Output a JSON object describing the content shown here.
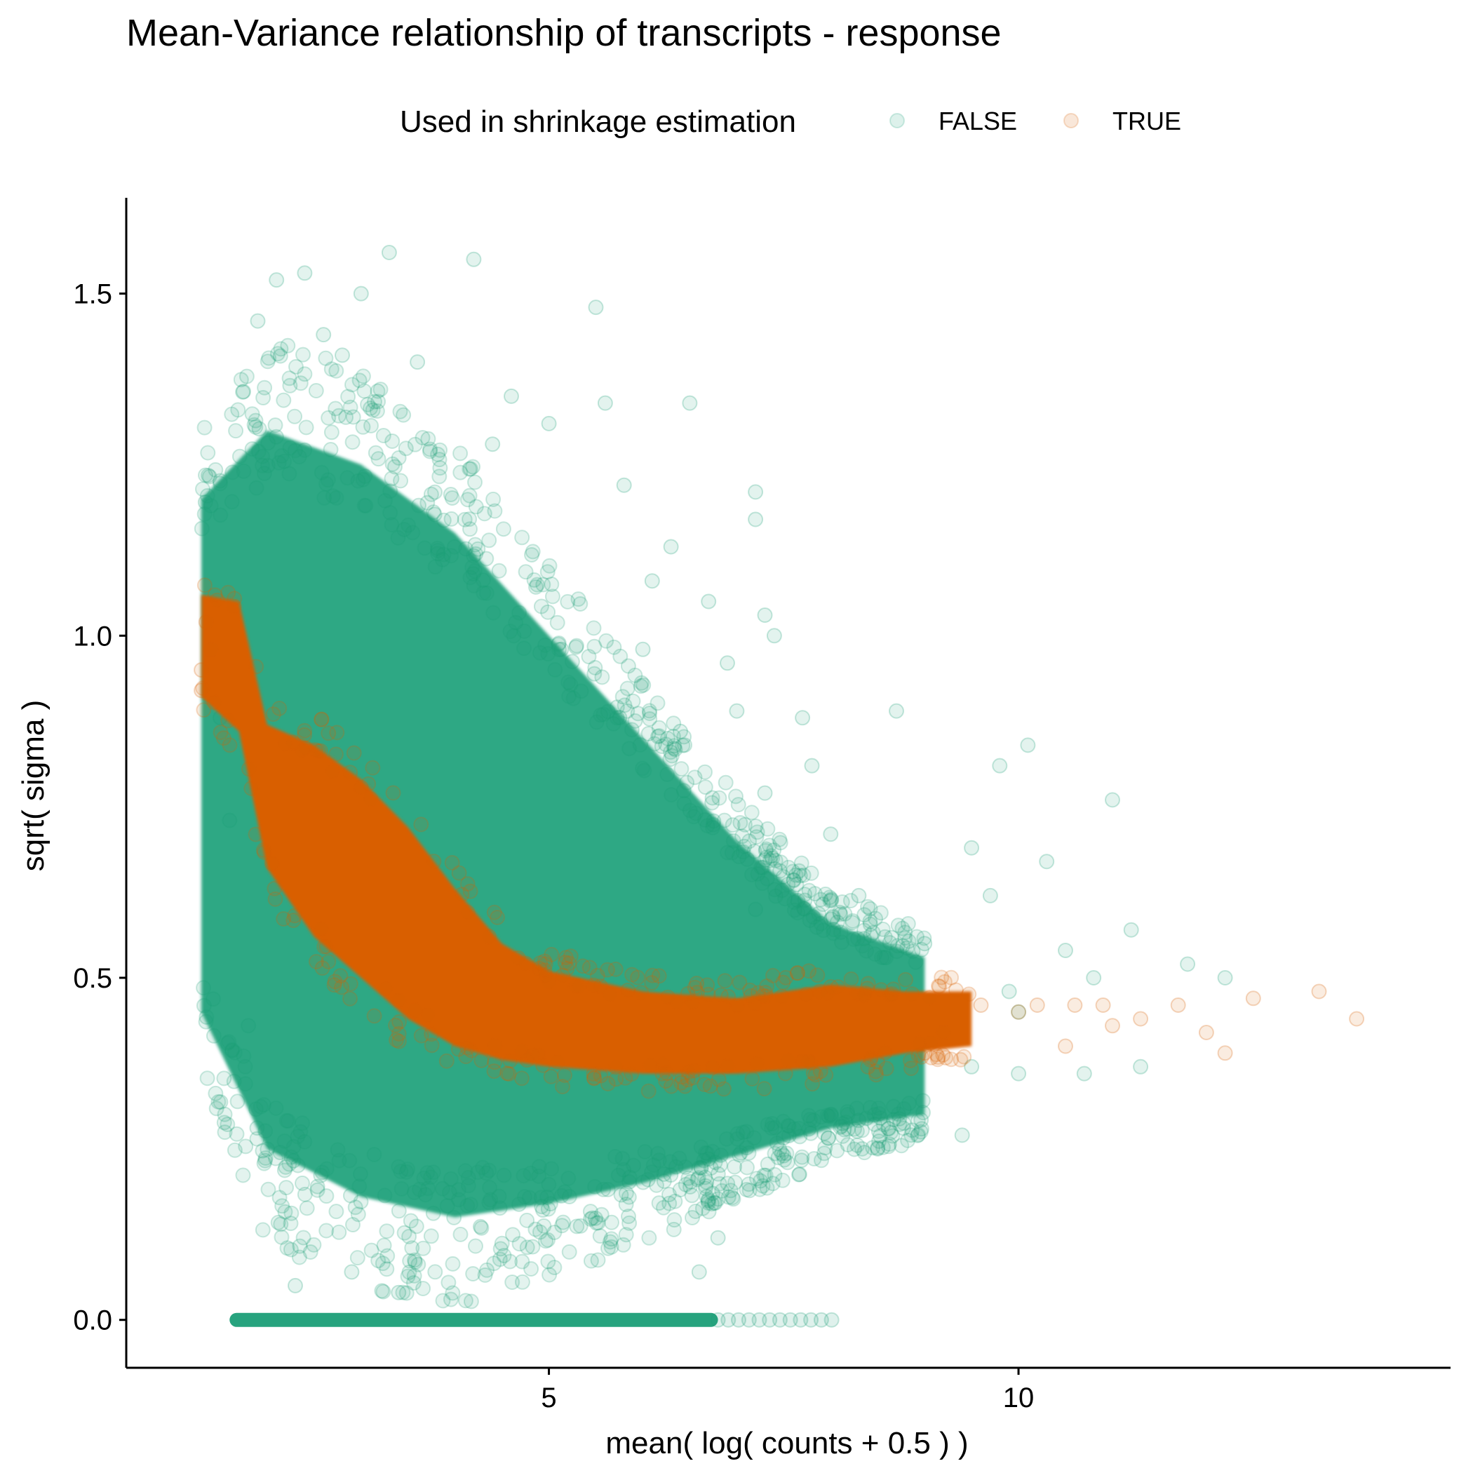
{
  "chart_data": {
    "type": "scatter",
    "title": "Mean-Variance relationship of transcripts - response",
    "xlabel": "mean( log( counts + 0.5 ) )",
    "ylabel": "sqrt( sigma )",
    "xlim": [
      0.5,
      14.6
    ],
    "ylim": [
      -0.07,
      1.64
    ],
    "x_ticks": [
      5,
      10
    ],
    "x_tick_labels": [
      "5",
      "10"
    ],
    "y_ticks": [
      0.0,
      0.5,
      1.0,
      1.5
    ],
    "y_tick_labels": [
      "0.0",
      "0.5",
      "1.0",
      "1.5"
    ],
    "grid": false,
    "legend": {
      "title": "Used in shrinkage estimation",
      "position": "top",
      "entries": [
        "FALSE",
        "TRUE"
      ]
    },
    "series": [
      {
        "name": "FALSE",
        "color": "#1B9E77",
        "marker_alpha": 0.12,
        "dense_core": {
          "description_x_range": [
            1.3,
            8.1
          ],
          "upper_envelope": [
            [
              1.3,
              1.2
            ],
            [
              2.0,
              1.3
            ],
            [
              3.0,
              1.25
            ],
            [
              4.0,
              1.15
            ],
            [
              5.0,
              1.0
            ],
            [
              6.0,
              0.85
            ],
            [
              7.0,
              0.7
            ],
            [
              8.0,
              0.58
            ],
            [
              9.0,
              0.53
            ]
          ],
          "lower_envelope": [
            [
              1.3,
              0.45
            ],
            [
              2.0,
              0.25
            ],
            [
              3.0,
              0.18
            ],
            [
              4.0,
              0.15
            ],
            [
              5.0,
              0.17
            ],
            [
              6.0,
              0.2
            ],
            [
              7.0,
              0.24
            ],
            [
              8.0,
              0.28
            ],
            [
              9.0,
              0.3
            ]
          ],
          "zero_band_x_range": [
            1.4,
            8.1
          ]
        },
        "points": [
          [
            3.3,
            1.56
          ],
          [
            4.2,
            1.55
          ],
          [
            2.4,
            1.53
          ],
          [
            2.1,
            1.52
          ],
          [
            3.0,
            1.5
          ],
          [
            5.5,
            1.48
          ],
          [
            1.9,
            1.46
          ],
          [
            2.6,
            1.44
          ],
          [
            3.6,
            1.4
          ],
          [
            2.8,
            1.41
          ],
          [
            4.6,
            1.35
          ],
          [
            5.6,
            1.34
          ],
          [
            6.5,
            1.34
          ],
          [
            5.0,
            1.31
          ],
          [
            4.4,
            1.28
          ],
          [
            5.8,
            1.22
          ],
          [
            7.2,
            1.21
          ],
          [
            7.2,
            1.17
          ],
          [
            6.3,
            1.13
          ],
          [
            6.1,
            1.08
          ],
          [
            6.7,
            1.05
          ],
          [
            7.3,
            1.03
          ],
          [
            7.4,
            1.0
          ],
          [
            6.0,
            0.98
          ],
          [
            6.9,
            0.96
          ],
          [
            8.7,
            0.89
          ],
          [
            7.0,
            0.89
          ],
          [
            7.7,
            0.88
          ],
          [
            6.4,
            0.86
          ],
          [
            9.8,
            0.81
          ],
          [
            10.1,
            0.84
          ],
          [
            7.8,
            0.81
          ],
          [
            7.3,
            0.77
          ],
          [
            11.0,
            0.76
          ],
          [
            8.0,
            0.71
          ],
          [
            9.5,
            0.69
          ],
          [
            9.7,
            0.62
          ],
          [
            10.3,
            0.67
          ],
          [
            11.2,
            0.57
          ],
          [
            11.8,
            0.52
          ],
          [
            12.2,
            0.5
          ],
          [
            10.5,
            0.54
          ],
          [
            9.0,
            0.55
          ],
          [
            10.8,
            0.5
          ],
          [
            10.0,
            0.45
          ],
          [
            9.9,
            0.48
          ],
          [
            10.7,
            0.36
          ],
          [
            11.3,
            0.37
          ],
          [
            9.5,
            0.37
          ],
          [
            10.0,
            0.36
          ],
          [
            8.0,
            0.3
          ],
          [
            8.5,
            0.25
          ],
          [
            9.4,
            0.27
          ],
          [
            7.5,
            0.24
          ],
          [
            6.8,
            0.12
          ],
          [
            1.8,
            0.43
          ],
          [
            1.5,
            0.88
          ],
          [
            1.6,
            0.73
          ],
          [
            2.3,
            0.05
          ],
          [
            3.4,
            0.04
          ],
          [
            2.9,
            0.07
          ],
          [
            6.6,
            0.07
          ],
          [
            7.2,
            0.6
          ],
          [
            8.3,
            0.62
          ]
        ]
      },
      {
        "name": "TRUE",
        "color": "#D95F02",
        "marker_alpha": 0.12,
        "dense_core": {
          "upper_envelope": [
            [
              1.3,
              1.06
            ],
            [
              1.7,
              1.05
            ],
            [
              2.0,
              0.87
            ],
            [
              2.5,
              0.84
            ],
            [
              3.0,
              0.79
            ],
            [
              3.5,
              0.72
            ],
            [
              4.0,
              0.63
            ],
            [
              4.5,
              0.55
            ],
            [
              5.0,
              0.51
            ],
            [
              6.0,
              0.48
            ],
            [
              7.0,
              0.47
            ],
            [
              8.0,
              0.49
            ],
            [
              8.8,
              0.48
            ],
            [
              9.5,
              0.48
            ]
          ],
          "lower_envelope": [
            [
              1.3,
              0.91
            ],
            [
              1.7,
              0.86
            ],
            [
              2.0,
              0.66
            ],
            [
              2.5,
              0.56
            ],
            [
              3.0,
              0.5
            ],
            [
              3.5,
              0.44
            ],
            [
              4.0,
              0.4
            ],
            [
              4.5,
              0.38
            ],
            [
              5.0,
              0.37
            ],
            [
              6.0,
              0.36
            ],
            [
              7.0,
              0.36
            ],
            [
              8.0,
              0.37
            ],
            [
              8.8,
              0.39
            ],
            [
              9.5,
              0.4
            ]
          ]
        },
        "points": [
          [
            1.3,
            0.95
          ],
          [
            1.35,
            1.02
          ],
          [
            1.4,
            0.98
          ],
          [
            1.3,
            0.92
          ],
          [
            9.6,
            0.46
          ],
          [
            9.2,
            0.42
          ],
          [
            10.0,
            0.45
          ],
          [
            10.2,
            0.46
          ],
          [
            10.6,
            0.46
          ],
          [
            10.9,
            0.46
          ],
          [
            11.3,
            0.44
          ],
          [
            11.7,
            0.46
          ],
          [
            12.0,
            0.42
          ],
          [
            12.2,
            0.39
          ],
          [
            12.5,
            0.47
          ],
          [
            13.2,
            0.48
          ],
          [
            13.6,
            0.44
          ],
          [
            10.5,
            0.4
          ],
          [
            9.0,
            0.39
          ],
          [
            11.0,
            0.43
          ]
        ]
      }
    ]
  }
}
